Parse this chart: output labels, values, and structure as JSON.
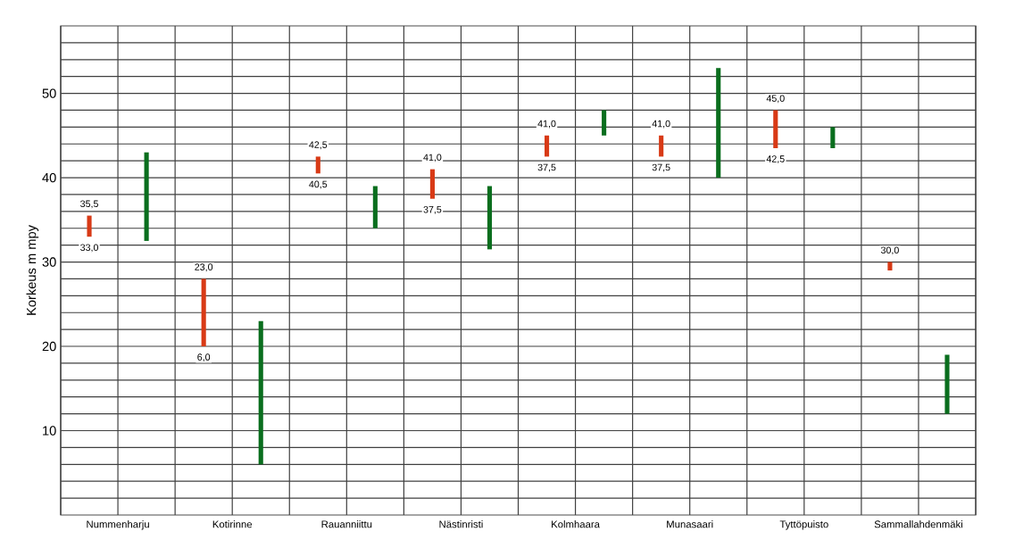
{
  "chart_data": {
    "type": "bar",
    "ylabel": "Korkeus m mpy",
    "categories": [
      "Nummenharju",
      "Kotirinne",
      "Rauanniittu",
      "Nästinristi",
      "Kolmhaara",
      "Munasaari",
      "Tyttöpuisto",
      "Sammallahdenmäki"
    ],
    "series": [
      {
        "color": "#d83a16",
        "base": [
          33,
          20,
          40.5,
          37.5,
          42.5,
          42.5,
          43.5,
          29
        ],
        "values": [
          2.5,
          8,
          2,
          3.5,
          2.5,
          2.5,
          4.5,
          1
        ]
      },
      {
        "color": "#0a6e1e",
        "base": [
          32.5,
          6,
          34,
          31.5,
          45,
          40,
          43.5,
          12
        ],
        "values": [
          10.5,
          17,
          5,
          7.5,
          3,
          13,
          2.5,
          7
        ]
      }
    ],
    "ylim": [
      0,
      58
    ],
    "yticks": [
      {
        "value": 2,
        "label": null
      },
      {
        "value": 4,
        "label": null
      },
      {
        "value": 6,
        "label": null
      },
      {
        "value": 8,
        "label": null
      },
      10,
      {
        "value": 12,
        "label": null
      },
      {
        "value": 14,
        "label": null
      },
      {
        "value": 16,
        "label": null
      },
      {
        "value": 18,
        "label": null
      },
      20,
      {
        "value": 22,
        "label": null
      },
      {
        "value": 24,
        "label": null
      },
      {
        "value": 26,
        "label": null
      },
      {
        "value": 28,
        "label": null
      },
      30,
      {
        "value": 32,
        "label": null
      },
      {
        "value": 34,
        "label": null
      },
      {
        "value": 36,
        "label": null
      },
      {
        "value": 38,
        "label": null
      },
      40,
      {
        "value": 42,
        "label": null
      },
      {
        "value": 44,
        "label": null
      },
      {
        "value": 46,
        "label": null
      },
      {
        "value": 48,
        "label": null
      },
      50,
      {
        "value": 52,
        "label": null
      },
      {
        "value": 54,
        "label": null
      },
      {
        "value": 56,
        "label": null
      }
    ],
    "grid": true,
    "annotations": [
      "35,5",
      "33,0",
      "23,0",
      "6,0",
      "42,5",
      "40,5",
      "41,0",
      "37,5",
      "41,0",
      "37,5",
      "41,0",
      "37,5",
      "45,0",
      "42,5",
      "30,0"
    ]
  }
}
